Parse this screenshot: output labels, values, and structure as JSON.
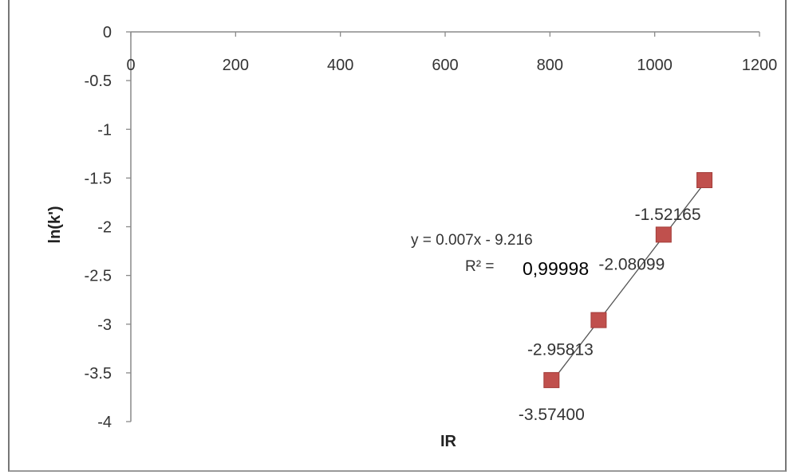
{
  "chart_data": {
    "type": "scatter",
    "title": "",
    "xlabel": "IR",
    "ylabel": "ln(k')",
    "xlim": [
      0,
      1200
    ],
    "ylim": [
      -4,
      0
    ],
    "x_ticks": [
      "0",
      "200",
      "400",
      "600",
      "800",
      "1000",
      "1200"
    ],
    "y_ticks": [
      "0",
      "-0.5",
      "-1",
      "-1.5",
      "-2",
      "-2.5",
      "-3",
      "-3.5",
      "-4"
    ],
    "grid": false,
    "legend": "none",
    "series": [
      {
        "marker_color": "#c0504d",
        "points": [
          {
            "x": 803,
            "y": -3.574,
            "label": "-3.57400"
          },
          {
            "x": 893,
            "y": -2.95813,
            "label": "-2.95813"
          },
          {
            "x": 1017,
            "y": -2.08099,
            "label": "-2.08099"
          },
          {
            "x": 1095,
            "y": -1.52165,
            "label": "-1.52165"
          }
        ]
      }
    ],
    "trendline": {
      "slope": 0.007,
      "intercept": -9.216,
      "equation": "y = 0.007x - 9.216",
      "r2_label": "R² =",
      "r2_value": "0,99998"
    }
  }
}
